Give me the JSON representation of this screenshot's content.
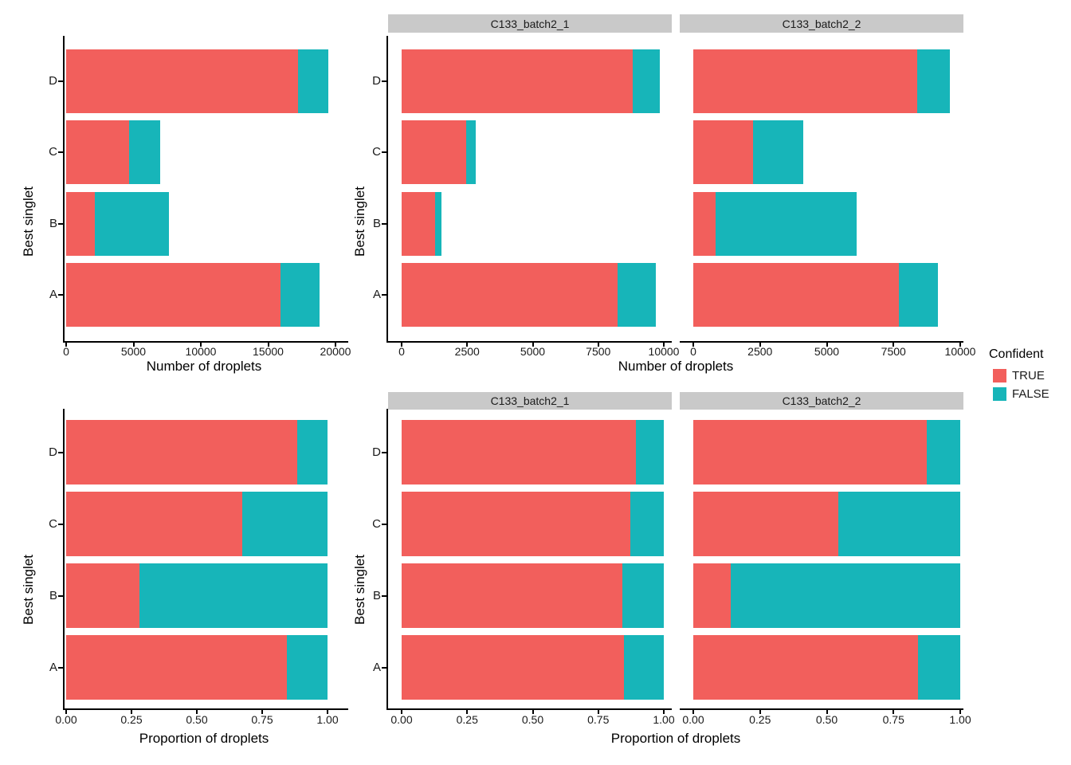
{
  "legend": {
    "title": "Confident",
    "entries": [
      {
        "label": "TRUE",
        "color": "#F25F5C"
      },
      {
        "label": "FALSE",
        "color": "#17B5B9"
      }
    ]
  },
  "colors": {
    "true_fill": "#F25F5C",
    "false_fill": "#17B5B9",
    "strip_bg": "#C9C9C9",
    "axis_line": "#000000"
  },
  "chart_data": [
    {
      "id": "droplet-counts-combined",
      "type": "bar",
      "stacked": true,
      "orientation": "horizontal",
      "xlabel": "Number of droplets",
      "ylabel": "Best singlet",
      "categories": [
        "D",
        "C",
        "B",
        "A"
      ],
      "series": [
        {
          "name": "TRUE",
          "values": [
            17200,
            4700,
            2130,
            15930
          ]
        },
        {
          "name": "FALSE",
          "values": [
            2240,
            2260,
            5510,
            2910
          ]
        }
      ],
      "xlim": [
        0,
        20000
      ],
      "xticks": [
        {
          "value": 0,
          "label": "0"
        },
        {
          "value": 5000,
          "label": "5000"
        },
        {
          "value": 10000,
          "label": "10000"
        },
        {
          "value": 15000,
          "label": "15000"
        },
        {
          "value": 20000,
          "label": "20000"
        }
      ]
    },
    {
      "id": "droplet-counts-by-sample",
      "type": "bar",
      "stacked": true,
      "orientation": "horizontal",
      "xlabel": "Number of droplets",
      "ylabel": "Best singlet",
      "categories": [
        "D",
        "C",
        "B",
        "A"
      ],
      "facets": [
        {
          "label": "C133_batch2_1",
          "series": [
            {
              "name": "TRUE",
              "values": [
                8800,
                2460,
                1280,
                8230
              ]
            },
            {
              "name": "FALSE",
              "values": [
                1040,
                370,
                240,
                1460
              ]
            }
          ]
        },
        {
          "label": "C133_batch2_2",
          "series": [
            {
              "name": "TRUE",
              "values": [
                8400,
                2240,
                850,
                7700
              ]
            },
            {
              "name": "FALSE",
              "values": [
                1200,
                1890,
                5270,
                1450
              ]
            }
          ]
        }
      ],
      "xlim": [
        0,
        10000
      ],
      "xticks": [
        {
          "value": 0,
          "label": "0"
        },
        {
          "value": 2500,
          "label": "2500"
        },
        {
          "value": 5000,
          "label": "5000"
        },
        {
          "value": 7500,
          "label": "7500"
        },
        {
          "value": 10000,
          "label": "10000"
        }
      ]
    },
    {
      "id": "droplet-proportions-combined",
      "type": "bar",
      "stacked": true,
      "orientation": "horizontal",
      "xlabel": "Proportion of droplets",
      "ylabel": "Best singlet",
      "categories": [
        "D",
        "C",
        "B",
        "A"
      ],
      "series": [
        {
          "name": "TRUE",
          "values": [
            0.885,
            0.675,
            0.279,
            0.846
          ]
        },
        {
          "name": "FALSE",
          "values": [
            0.115,
            0.325,
            0.721,
            0.154
          ]
        }
      ],
      "xlim": [
        0,
        1
      ],
      "xticks": [
        {
          "value": 0,
          "label": "0.00"
        },
        {
          "value": 0.25,
          "label": "0.25"
        },
        {
          "value": 0.5,
          "label": "0.50"
        },
        {
          "value": 0.75,
          "label": "0.75"
        },
        {
          "value": 1,
          "label": "1.00"
        }
      ]
    },
    {
      "id": "droplet-proportions-by-sample",
      "type": "bar",
      "stacked": true,
      "orientation": "horizontal",
      "xlabel": "Proportion of droplets",
      "ylabel": "Best singlet",
      "categories": [
        "D",
        "C",
        "B",
        "A"
      ],
      "facets": [
        {
          "label": "C133_batch2_1",
          "series": [
            {
              "name": "TRUE",
              "values": [
                0.894,
                0.872,
                0.842,
                0.849
              ]
            },
            {
              "name": "FALSE",
              "values": [
                0.106,
                0.128,
                0.158,
                0.151
              ]
            }
          ]
        },
        {
          "label": "C133_batch2_2",
          "series": [
            {
              "name": "TRUE",
              "values": [
                0.875,
                0.542,
                0.139,
                0.842
              ]
            },
            {
              "name": "FALSE",
              "values": [
                0.125,
                0.458,
                0.861,
                0.158
              ]
            }
          ]
        }
      ],
      "xlim": [
        0,
        1
      ],
      "xticks": [
        {
          "value": 0,
          "label": "0.00"
        },
        {
          "value": 0.25,
          "label": "0.25"
        },
        {
          "value": 0.5,
          "label": "0.50"
        },
        {
          "value": 0.75,
          "label": "0.75"
        },
        {
          "value": 1,
          "label": "1.00"
        }
      ]
    }
  ]
}
